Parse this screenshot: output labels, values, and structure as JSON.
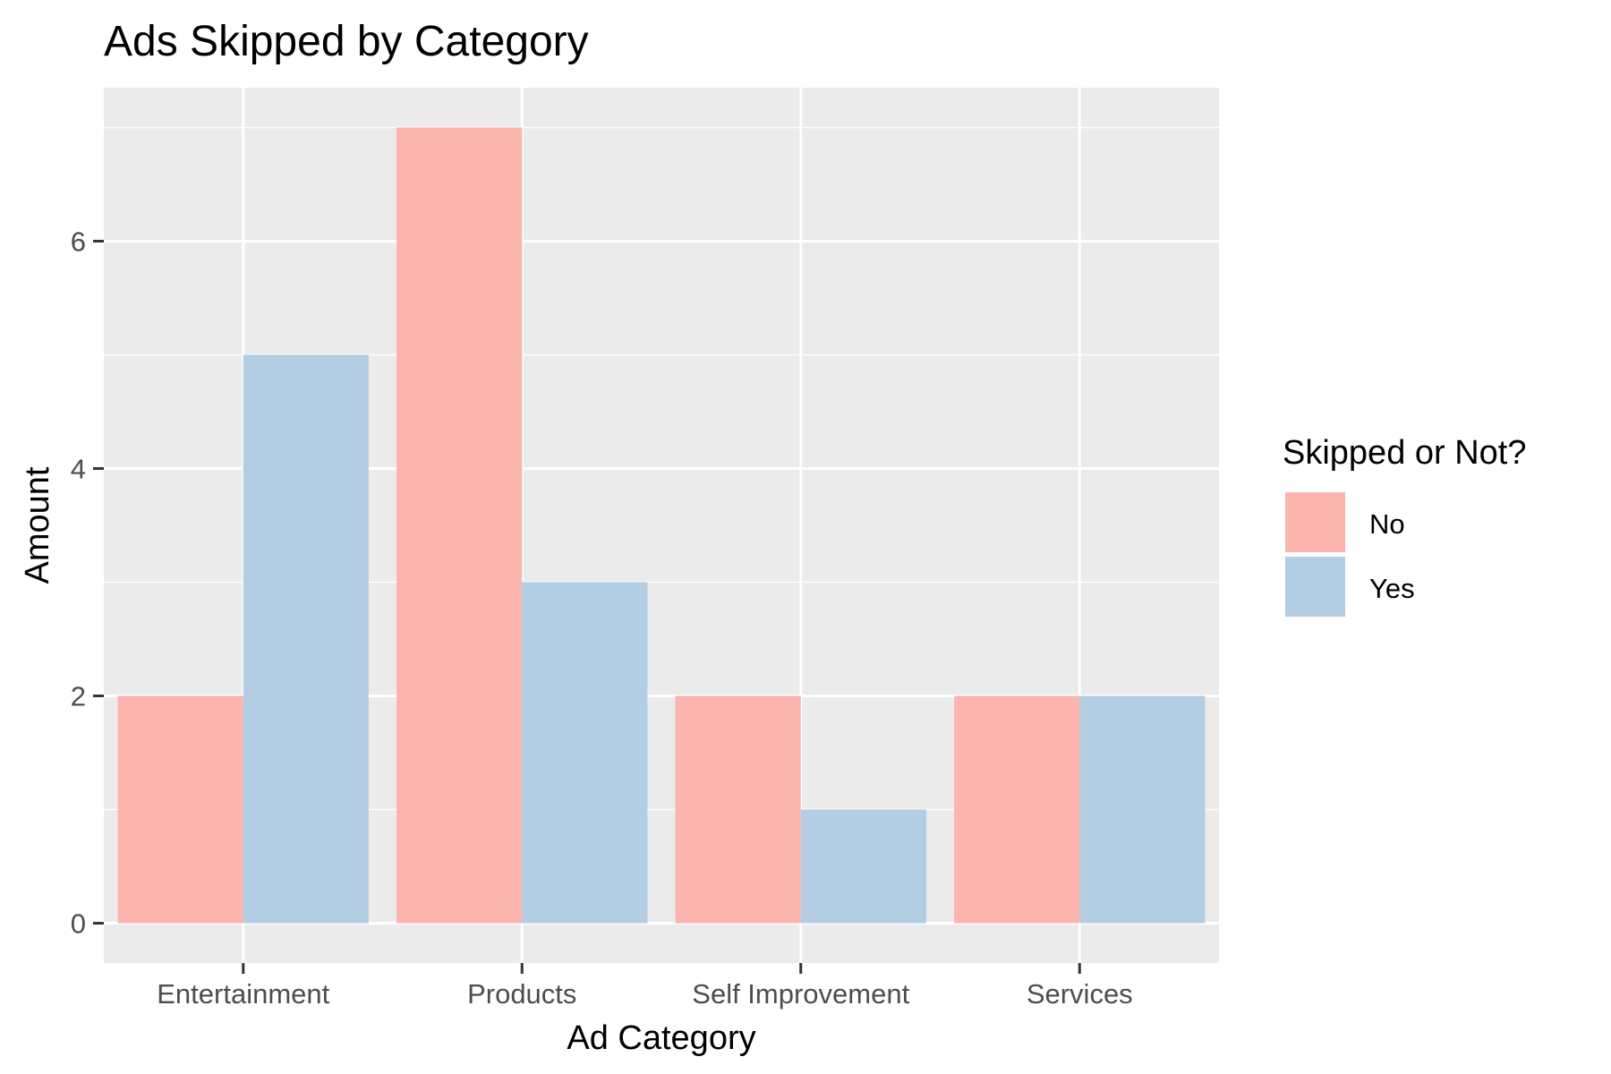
{
  "chart_data": {
    "type": "bar",
    "title": "Ads Skipped by Category",
    "xlabel": "Ad Category",
    "ylabel": "Amount",
    "categories": [
      "Entertainment",
      "Products",
      "Self Improvement",
      "Services"
    ],
    "series": [
      {
        "name": "No",
        "values": [
          2,
          7,
          2,
          2
        ],
        "color": "#FBB4AE"
      },
      {
        "name": "Yes",
        "values": [
          5,
          3,
          1,
          2
        ],
        "color": "#B3CDE3"
      }
    ],
    "ylim": [
      -0.35,
      7.35
    ],
    "yticks": [
      0,
      2,
      4,
      6
    ],
    "ytick_labels": [
      "0",
      "2",
      "4",
      "6"
    ],
    "grid": true,
    "legend": {
      "title": "Skipped or Not?",
      "placement": "right"
    },
    "colors": {
      "panel": "#EBEBEB",
      "grid": "#FFFFFF",
      "tick": "#333333"
    }
  }
}
